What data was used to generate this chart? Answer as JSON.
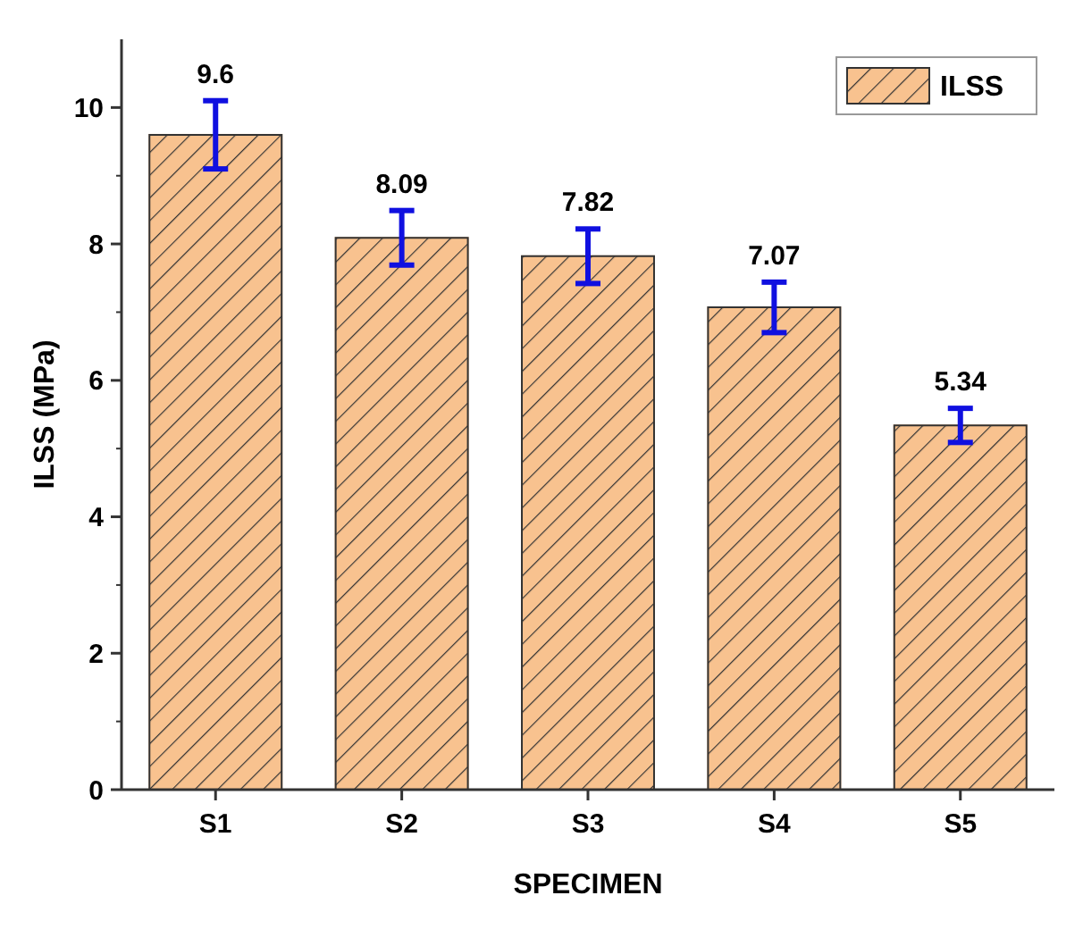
{
  "chart_data": {
    "type": "bar",
    "xlabel": "SPECIMEN",
    "ylabel": "ILSS (MPa)",
    "categories": [
      "S1",
      "S2",
      "S3",
      "S4",
      "S5"
    ],
    "series": [
      {
        "name": "ILSS",
        "color": "#f8c28f",
        "values": [
          9.6,
          8.09,
          7.82,
          7.07,
          5.34
        ],
        "errors": [
          0.5,
          0.4,
          0.4,
          0.37,
          0.25
        ]
      }
    ],
    "data_labels": true,
    "ylim": [
      0,
      11
    ],
    "yticks": [
      0,
      2,
      4,
      6,
      8,
      10
    ],
    "legend": "top right",
    "grid": false
  }
}
